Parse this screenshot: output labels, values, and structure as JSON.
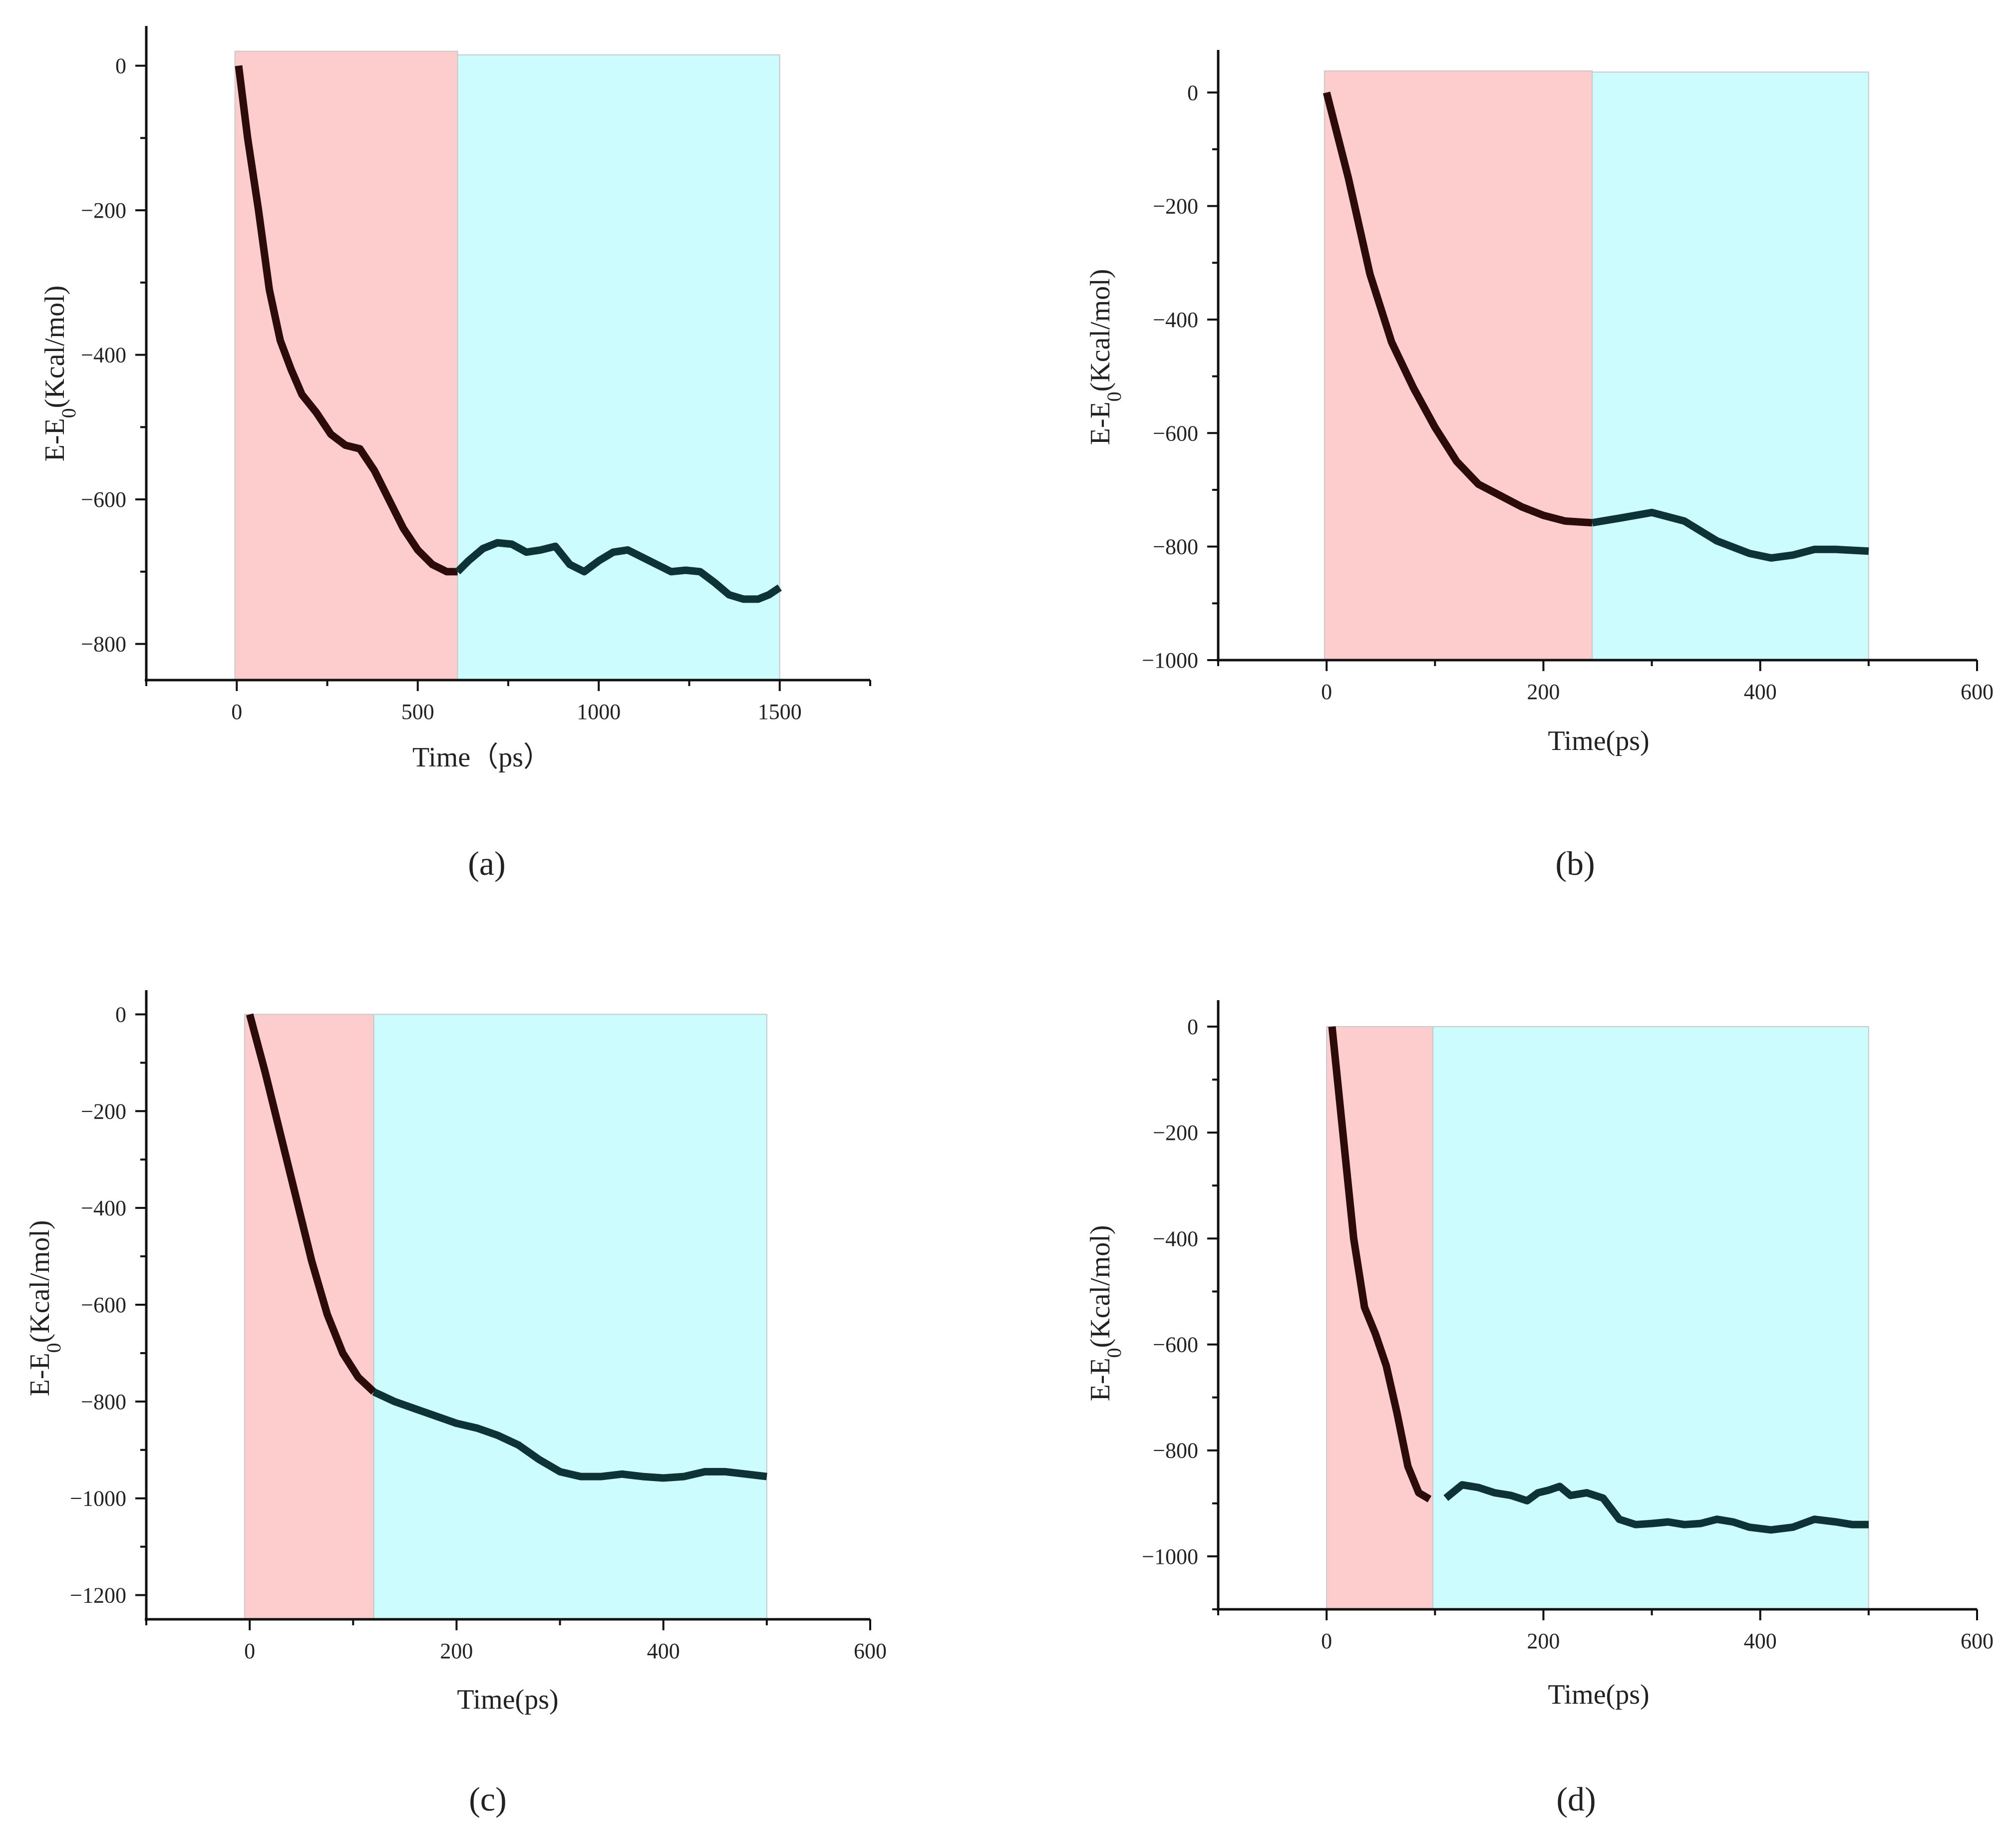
{
  "figure": {
    "colors": {
      "phase1_fill": "#fdcdcd",
      "phase2_fill": "#ccfcfd",
      "curve_phase1": "#2c0b0b",
      "curve_phase2": "#0e3336",
      "axis": "#111111"
    }
  },
  "chart_data": [
    {
      "type": "line",
      "panel": "a",
      "panel_label": "(a)",
      "xlabel": "Time（ps）",
      "ylabel": "E-E0(Kcal/mol)",
      "xlim": [
        -250,
        1750
      ],
      "ylim": [
        -850,
        55
      ],
      "xticks": [
        0,
        500,
        1000,
        1500
      ],
      "yticks": [
        0,
        -200,
        -400,
        -600,
        -800
      ],
      "regions": [
        {
          "name": "phase-1",
          "x0": -5,
          "x1": 610,
          "y_top": 20,
          "color": "#fdcdcd"
        },
        {
          "name": "phase-2",
          "x0": 610,
          "x1": 1500,
          "y_top": 15,
          "color": "#ccfcfd"
        }
      ],
      "transition_x": 610,
      "x": [
        5,
        30,
        60,
        90,
        120,
        150,
        180,
        220,
        260,
        300,
        340,
        380,
        420,
        460,
        500,
        540,
        580,
        610,
        640,
        680,
        720,
        760,
        800,
        840,
        880,
        920,
        960,
        1000,
        1040,
        1080,
        1120,
        1160,
        1200,
        1240,
        1280,
        1320,
        1360,
        1400,
        1440,
        1470,
        1500
      ],
      "values": [
        0,
        -100,
        -200,
        -310,
        -380,
        -420,
        -455,
        -480,
        -510,
        -525,
        -530,
        -560,
        -600,
        -640,
        -670,
        -690,
        -700,
        -700,
        -685,
        -668,
        -660,
        -662,
        -673,
        -670,
        -665,
        -690,
        -700,
        -685,
        -673,
        -670,
        -680,
        -690,
        -700,
        -698,
        -700,
        -715,
        -732,
        -738,
        -738,
        -732,
        -722
      ]
    },
    {
      "type": "line",
      "panel": "b",
      "panel_label": "(b)",
      "xlabel": "Time(ps)",
      "ylabel": "E-E0(Kcal/mol)",
      "xlim": [
        -100,
        600
      ],
      "ylim": [
        -1000,
        75
      ],
      "xticks": [
        0,
        200,
        400,
        600
      ],
      "yticks": [
        0,
        -200,
        -400,
        -600,
        -800,
        -1000
      ],
      "regions": [
        {
          "name": "phase-1",
          "x0": -2,
          "x1": 245,
          "y_top": 38,
          "color": "#fdcdcd"
        },
        {
          "name": "phase-2",
          "x0": 245,
          "x1": 500,
          "y_top": 36,
          "color": "#ccfcfd"
        }
      ],
      "transition_x": 245,
      "x": [
        0,
        20,
        40,
        60,
        80,
        100,
        120,
        140,
        160,
        180,
        200,
        220,
        245,
        270,
        300,
        330,
        360,
        390,
        410,
        430,
        450,
        470,
        500
      ],
      "values": [
        0,
        -150,
        -320,
        -440,
        -520,
        -590,
        -650,
        -690,
        -710,
        -730,
        -745,
        -755,
        -758,
        -750,
        -740,
        -755,
        -790,
        -812,
        -820,
        -815,
        -805,
        -805,
        -808
      ]
    },
    {
      "type": "line",
      "panel": "c",
      "panel_label": "(c)",
      "xlabel": "Time(ps)",
      "ylabel": "E-E0(Kcal/mol)",
      "xlim": [
        -100,
        600
      ],
      "ylim": [
        -1250,
        50
      ],
      "xticks": [
        0,
        200,
        400,
        600
      ],
      "yticks": [
        0,
        -200,
        -400,
        -600,
        -800,
        -1000,
        -1200
      ],
      "regions": [
        {
          "name": "phase-1",
          "x0": -5,
          "x1": 120,
          "y_top": 0,
          "color": "#fdcdcd"
        },
        {
          "name": "phase-2",
          "x0": 120,
          "x1": 500,
          "y_top": 0,
          "color": "#ccfcfd"
        }
      ],
      "transition_x": 120,
      "x": [
        0,
        15,
        30,
        45,
        60,
        75,
        90,
        105,
        120,
        140,
        160,
        180,
        200,
        220,
        240,
        260,
        280,
        300,
        320,
        340,
        360,
        380,
        400,
        420,
        440,
        460,
        480,
        500
      ],
      "values": [
        0,
        -120,
        -250,
        -380,
        -510,
        -620,
        -700,
        -750,
        -780,
        -800,
        -815,
        -830,
        -845,
        -855,
        -870,
        -890,
        -920,
        -945,
        -955,
        -955,
        -950,
        -955,
        -958,
        -955,
        -945,
        -945,
        -950,
        -955
      ]
    },
    {
      "type": "line",
      "panel": "d",
      "panel_label": "(d)",
      "xlabel": "Time(ps)",
      "ylabel": "E-E0(Kcal/mol)",
      "xlim": [
        -100,
        600
      ],
      "ylim": [
        -1100,
        50
      ],
      "xticks": [
        0,
        200,
        400,
        600
      ],
      "yticks": [
        0,
        -200,
        -400,
        -600,
        -800,
        -1000
      ],
      "regions": [
        {
          "name": "phase-1",
          "x0": 0,
          "x1": 98,
          "y_top": 0,
          "color": "#fdcdcd"
        },
        {
          "name": "phase-2",
          "x0": 98,
          "x1": 500,
          "y_top": 0,
          "color": "#ccfcfd"
        }
      ],
      "transition_x": 98,
      "x": [
        5,
        15,
        25,
        35,
        45,
        55,
        65,
        75,
        85,
        95,
        110,
        125,
        140,
        155,
        170,
        185,
        195,
        205,
        215,
        225,
        240,
        255,
        270,
        285,
        300,
        315,
        330,
        345,
        360,
        375,
        390,
        410,
        430,
        450,
        470,
        485,
        500
      ],
      "values": [
        0,
        -200,
        -400,
        -530,
        -580,
        -640,
        -730,
        -830,
        -880,
        -892,
        -890,
        -865,
        -870,
        -880,
        -885,
        -895,
        -880,
        -875,
        -868,
        -885,
        -880,
        -890,
        -930,
        -940,
        -938,
        -935,
        -940,
        -938,
        -930,
        -935,
        -945,
        -950,
        -945,
        -930,
        -935,
        -940,
        -940
      ]
    }
  ]
}
